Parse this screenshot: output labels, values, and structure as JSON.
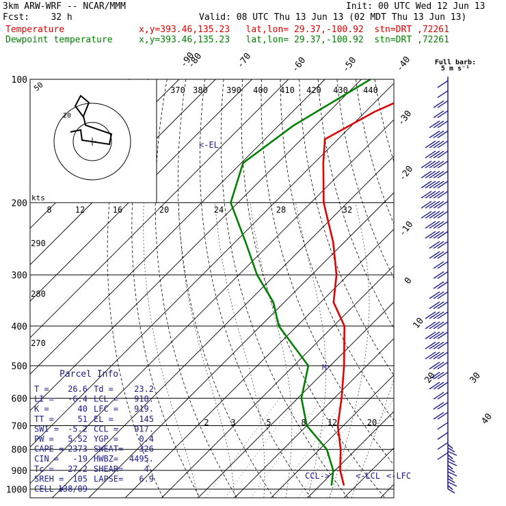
{
  "header": {
    "line1_left": "3km ARW-WRF -- NCAR/MMM",
    "line1_right": "Init: 00 UTC Wed 12 Jun 13",
    "line2_left": "Fcst:    32 h",
    "line2_right": "Valid: 08 UTC Thu 13 Jun 13 (02 MDT Thu 13 Jun 13)",
    "line3_name": "Temperature",
    "line3_info": "x,y=393.46,135.23   lat,lon= 29.37,-100.92  stn=DRT ,72261",
    "line4_name": "Dewpoint temperature",
    "line4_info": "x,y=393.46,135.23   lat,lon= 29.37,-100.92  stn=DRT ,72261"
  },
  "colors": {
    "temperature": "#e00000",
    "dewpoint": "#008000",
    "wind": "#1a1a8c",
    "grid": "#000000"
  },
  "chart_data": {
    "type": "line",
    "title": "",
    "ylabel": "",
    "pressure_ticks": [
      100,
      200,
      300,
      400,
      500,
      600,
      700,
      800,
      900,
      1000
    ],
    "isotherm_labels": [
      "-90",
      "-80",
      "-70",
      "-60",
      "-50",
      "-40",
      "-30",
      "-20",
      "-10",
      "0",
      "10",
      "20",
      "30",
      "40"
    ],
    "theta_labels": [
      "370",
      "380",
      "390",
      "400",
      "410",
      "420",
      "430",
      "440"
    ],
    "theta_left_labels": [
      "290",
      "280",
      "270"
    ],
    "mixing_ratio_labels": [
      "2",
      "3",
      "5",
      "8",
      "12",
      "20"
    ],
    "hodograph_speed_labels": [
      "8",
      "12",
      "16",
      "20",
      "24",
      "28",
      "32"
    ],
    "hodograph_misc": {
      "kts": "kts",
      "ring_label_50": "50",
      "ring_label_20": "20"
    },
    "annotations": {
      "el": "<-EL",
      "ccl": "CCL->",
      "lcl": "<-LCL",
      "lfc": "<-LFC",
      "m": "M"
    },
    "wind_legend": {
      "line1": "Full barb:",
      "line2": "5 m s⁻¹"
    },
    "series": [
      {
        "name": "Temperature",
        "points": [
          [
            100,
            -56.5
          ],
          [
            120,
            -67.5
          ],
          [
            140,
            -73.6
          ],
          [
            160,
            -67.5
          ],
          [
            200,
            -56.5
          ],
          [
            250,
            -43
          ],
          [
            300,
            -33.2
          ],
          [
            350,
            -26.5
          ],
          [
            400,
            -17
          ],
          [
            500,
            -6.2
          ],
          [
            600,
            2
          ],
          [
            700,
            8.5
          ],
          [
            800,
            15.8
          ],
          [
            900,
            21.4
          ],
          [
            980,
            26.6
          ]
        ]
      },
      {
        "name": "Dewpoint temperature",
        "points": [
          [
            100,
            -77.5
          ],
          [
            130,
            -86
          ],
          [
            160,
            -89.5
          ],
          [
            200,
            -82
          ],
          [
            250,
            -67
          ],
          [
            300,
            -55
          ],
          [
            350,
            -43
          ],
          [
            400,
            -35
          ],
          [
            500,
            -16
          ],
          [
            600,
            -9
          ],
          [
            700,
            0
          ],
          [
            800,
            12
          ],
          [
            900,
            19.5
          ],
          [
            980,
            23.2
          ]
        ]
      }
    ]
  },
  "parcel_info": {
    "title": "Parcel Info",
    "rows": [
      [
        "T  =",
        "26.6",
        "Td =",
        "23.2"
      ],
      [
        "LI =",
        "-6.4",
        "LCL =",
        "918."
      ],
      [
        "K  =",
        "40",
        "LFC =",
        "919."
      ],
      [
        "TT =",
        "51",
        "EL  =",
        "145"
      ],
      [
        "SWI =",
        "-5.2",
        "CCL =",
        "917."
      ],
      [
        "PW =",
        "5.52",
        "YGP =",
        "0.4"
      ],
      [
        "CAPE =",
        "2373",
        "SWEAT=",
        "326"
      ],
      [
        "CIN =",
        "-19",
        "HWBZ=",
        "4495."
      ],
      [
        "Tc =",
        "27.2",
        "SHEAR=",
        "4."
      ],
      [
        "SREH =",
        "105",
        "LAPSE=",
        "6.9"
      ],
      [
        "CELL =",
        "138/09",
        "",
        ""
      ]
    ]
  }
}
